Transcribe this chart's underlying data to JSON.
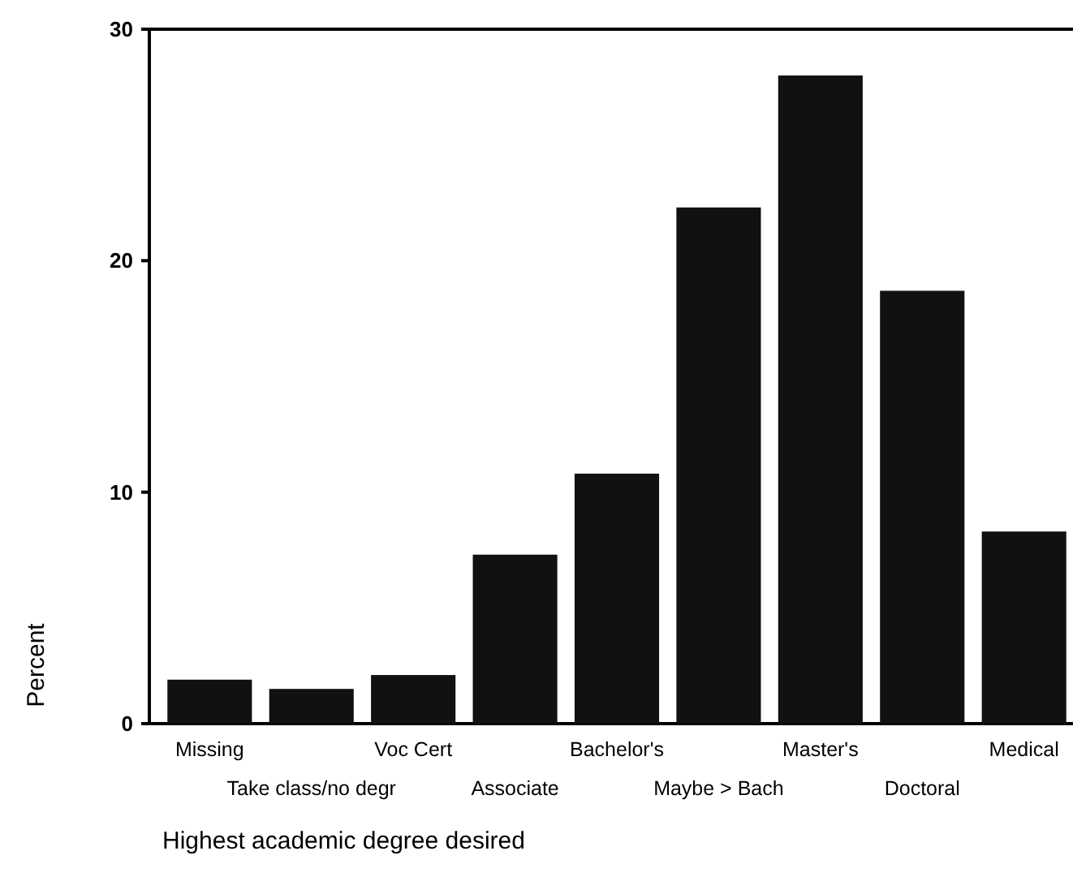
{
  "chart_data": {
    "type": "bar",
    "xlabel": "Highest academic degree desired",
    "ylabel": "Percent",
    "categories": [
      "Missing",
      "Take class/no degr",
      "Voc Cert",
      "Associate",
      "Bachelor's",
      "Maybe > Bach",
      "Master's",
      "Doctoral",
      "Medical"
    ],
    "values": [
      1.9,
      1.5,
      2.1,
      7.3,
      10.8,
      22.3,
      28.0,
      18.7,
      8.3
    ],
    "color": "#111111",
    "ylim": [
      0,
      30
    ],
    "yticks": [
      0,
      10,
      20,
      30
    ],
    "grid": false
  }
}
